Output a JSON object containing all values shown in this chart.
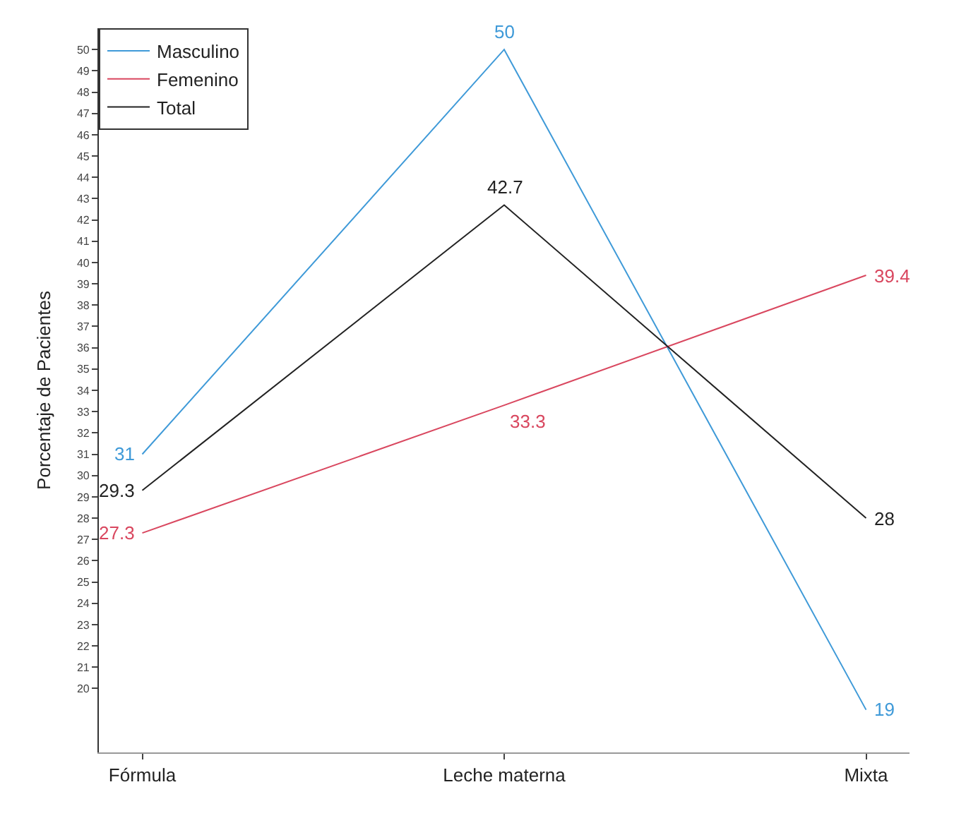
{
  "chart_data": {
    "type": "line",
    "ylabel": "Porcentaje de Pacientes",
    "categories": [
      "Fórmula",
      "Leche materna",
      "Mixta"
    ],
    "series": [
      {
        "name": "Masculino",
        "color": "#3f9ad8",
        "values": [
          31,
          50,
          19
        ]
      },
      {
        "name": "Femenino",
        "color": "#d9475f",
        "values": [
          27.3,
          33.3,
          39.4
        ]
      },
      {
        "name": "Total",
        "color": "#222222",
        "values": [
          29.3,
          42.7,
          28
        ]
      }
    ],
    "data_labels": true,
    "ylim": [
      17,
      51
    ],
    "yticks": [
      20,
      21,
      22,
      23,
      24,
      25,
      26,
      27,
      28,
      29,
      30,
      31,
      32,
      33,
      34,
      35,
      36,
      37,
      38,
      39,
      40,
      41,
      42,
      43,
      44,
      45,
      46,
      47,
      48,
      49,
      50
    ],
    "legend": "top left",
    "line_style": "solid"
  }
}
